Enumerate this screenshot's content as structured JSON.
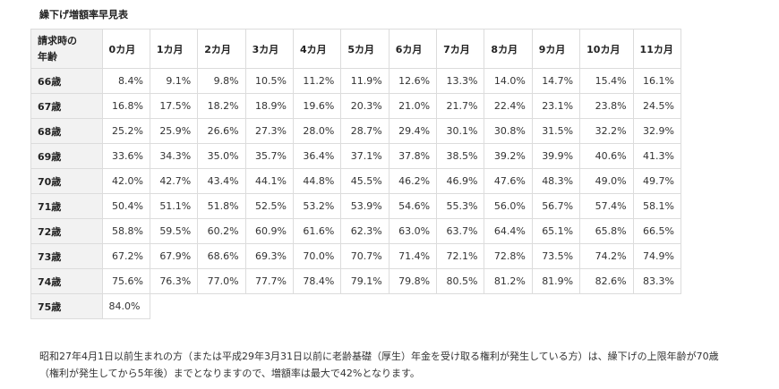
{
  "title": "繰下げ増額率早見表",
  "table": {
    "corner_line1": "請求時の",
    "corner_line2": "年齢",
    "months": [
      "0カ月",
      "1カ月",
      "2カ月",
      "3カ月",
      "4カ月",
      "5カ月",
      "6カ月",
      "7カ月",
      "8カ月",
      "9カ月",
      "10カ月",
      "11カ月"
    ],
    "rows": [
      {
        "age": "66歳",
        "rates": [
          "8.4%",
          "9.1%",
          "9.8%",
          "10.5%",
          "11.2%",
          "11.9%",
          "12.6%",
          "13.3%",
          "14.0%",
          "14.7%",
          "15.4%",
          "16.1%"
        ]
      },
      {
        "age": "67歳",
        "rates": [
          "16.8%",
          "17.5%",
          "18.2%",
          "18.9%",
          "19.6%",
          "20.3%",
          "21.0%",
          "21.7%",
          "22.4%",
          "23.1%",
          "23.8%",
          "24.5%"
        ]
      },
      {
        "age": "68歳",
        "rates": [
          "25.2%",
          "25.9%",
          "26.6%",
          "27.3%",
          "28.0%",
          "28.7%",
          "29.4%",
          "30.1%",
          "30.8%",
          "31.5%",
          "32.2%",
          "32.9%"
        ]
      },
      {
        "age": "69歳",
        "rates": [
          "33.6%",
          "34.3%",
          "35.0%",
          "35.7%",
          "36.4%",
          "37.1%",
          "37.8%",
          "38.5%",
          "39.2%",
          "39.9%",
          "40.6%",
          "41.3%"
        ]
      },
      {
        "age": "70歳",
        "rates": [
          "42.0%",
          "42.7%",
          "43.4%",
          "44.1%",
          "44.8%",
          "45.5%",
          "46.2%",
          "46.9%",
          "47.6%",
          "48.3%",
          "49.0%",
          "49.7%"
        ]
      },
      {
        "age": "71歳",
        "rates": [
          "50.4%",
          "51.1%",
          "51.8%",
          "52.5%",
          "53.2%",
          "53.9%",
          "54.6%",
          "55.3%",
          "56.0%",
          "56.7%",
          "57.4%",
          "58.1%"
        ]
      },
      {
        "age": "72歳",
        "rates": [
          "58.8%",
          "59.5%",
          "60.2%",
          "60.9%",
          "61.6%",
          "62.3%",
          "63.0%",
          "63.7%",
          "64.4%",
          "65.1%",
          "65.8%",
          "66.5%"
        ]
      },
      {
        "age": "73歳",
        "rates": [
          "67.2%",
          "67.9%",
          "68.6%",
          "69.3%",
          "70.0%",
          "70.7%",
          "71.4%",
          "72.1%",
          "72.8%",
          "73.5%",
          "74.2%",
          "74.9%"
        ]
      },
      {
        "age": "74歳",
        "rates": [
          "75.6%",
          "76.3%",
          "77.0%",
          "77.7%",
          "78.4%",
          "79.1%",
          "79.8%",
          "80.5%",
          "81.2%",
          "81.9%",
          "82.6%",
          "83.3%"
        ]
      }
    ],
    "last_row": {
      "age": "75歳",
      "rate": "84.0%"
    }
  },
  "footnote": "昭和27年4月1日以前生まれの方（または平成29年3月31日以前に老齢基礎（厚生）年金を受け取る権利が発生している方）は、繰下げの上限年齢が70歳（権利が発生してから5年後）までとなりますので、増額率は最大で42%となります。"
}
